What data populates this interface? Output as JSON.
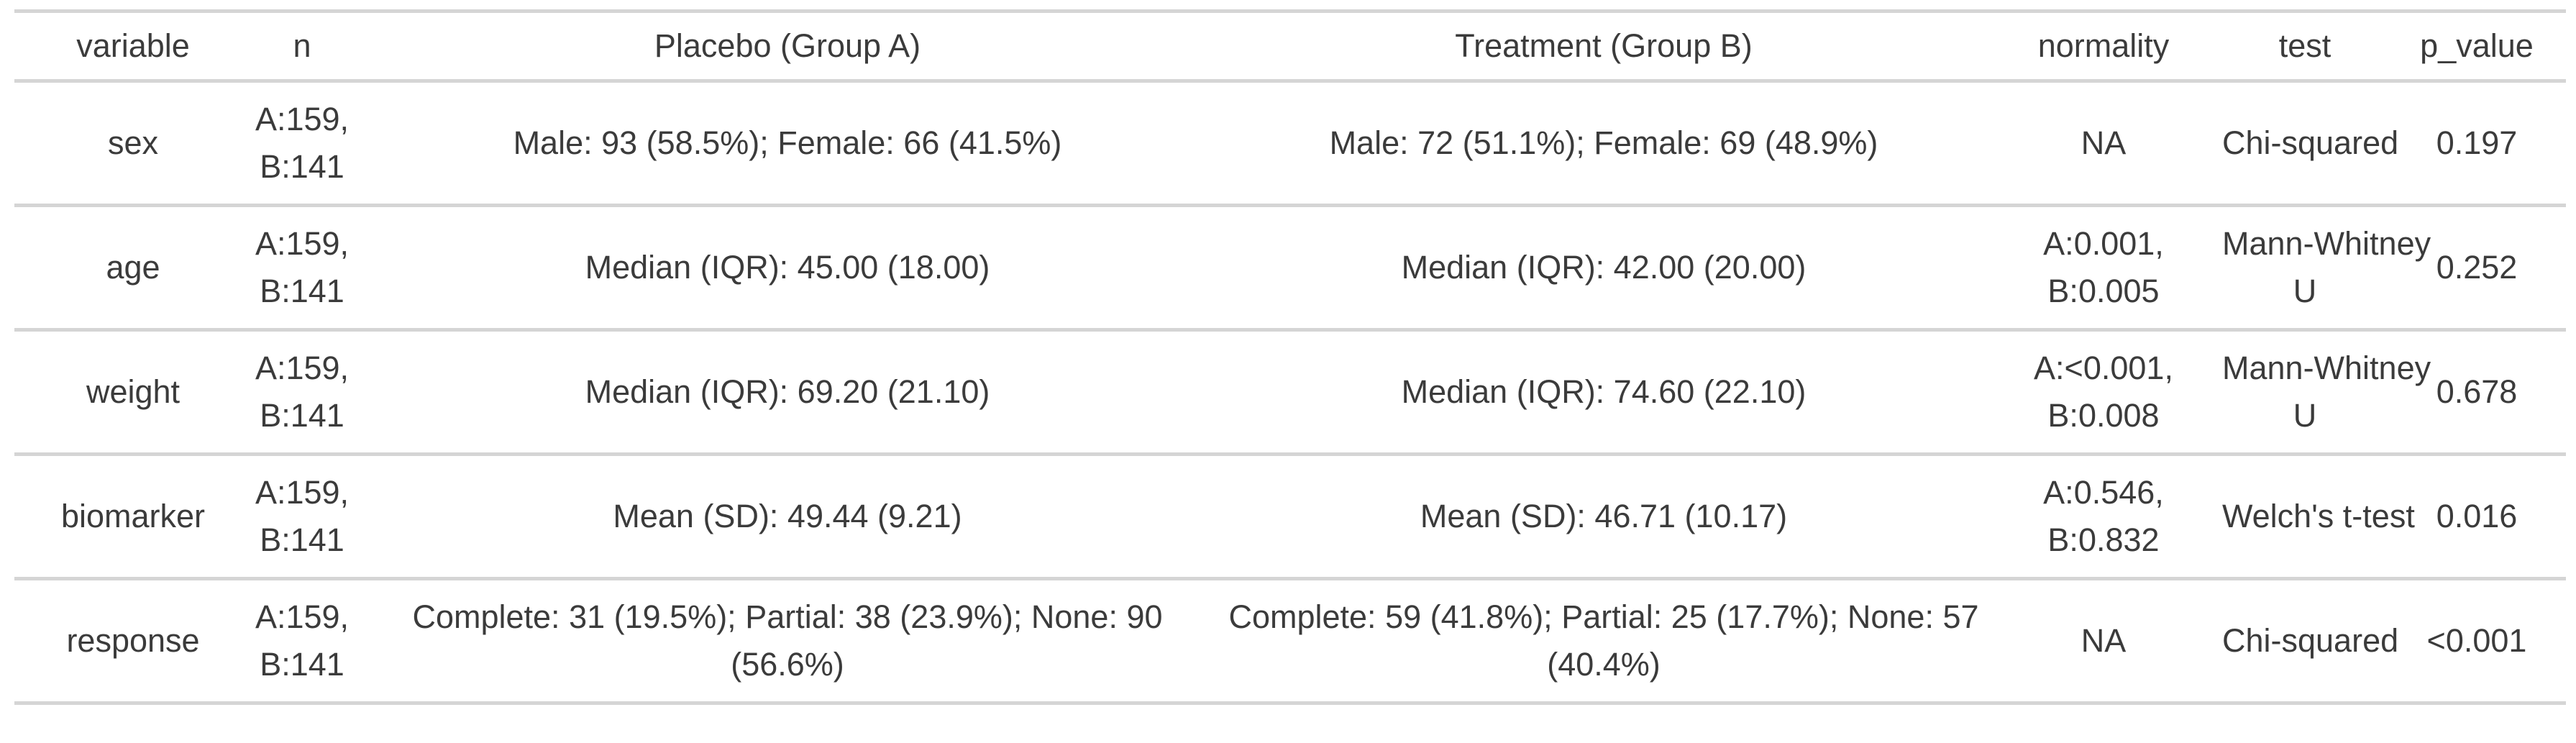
{
  "table": {
    "columns": [
      "variable",
      "n",
      "Placebo (Group A)",
      "Treatment (Group B)",
      "normality",
      "test",
      "p_value"
    ],
    "rows": [
      {
        "cells": [
          "sex",
          "A:159,\nB:141",
          "Male: 93 (58.5%); Female: 66 (41.5%)",
          "Male: 72 (51.1%); Female: 69 (48.9%)",
          "NA",
          "Chi-squared",
          "0.197"
        ]
      },
      {
        "cells": [
          "age",
          "A:159,\nB:141",
          "Median (IQR): 45.00 (18.00)",
          "Median (IQR): 42.00 (20.00)",
          "A:0.001,\nB:0.005",
          "Mann-Whitney\nU",
          "0.252"
        ]
      },
      {
        "cells": [
          "weight",
          "A:159,\nB:141",
          "Median (IQR): 69.20 (21.10)",
          "Median (IQR): 74.60 (22.10)",
          "A:<0.001,\nB:0.008",
          "Mann-Whitney\nU",
          "0.678"
        ]
      },
      {
        "cells": [
          "biomarker",
          "A:159,\nB:141",
          "Mean (SD): 49.44 (9.21)",
          "Mean (SD): 46.71 (10.17)",
          "A:0.546,\nB:0.832",
          "Welch's t-test",
          "0.016"
        ]
      },
      {
        "cells": [
          "response",
          "A:159,\nB:141",
          "Complete: 31 (19.5%); Partial: 38 (23.9%); None: 90\n(56.6%)",
          "Complete: 59 (41.8%); Partial: 25 (17.7%); None: 57\n(40.4%)",
          "NA",
          "Chi-squared",
          "<0.001"
        ]
      }
    ]
  },
  "colors": {
    "text": "#3b3b3b",
    "row_border": "#d5d5d5",
    "background": "#ffffff"
  }
}
